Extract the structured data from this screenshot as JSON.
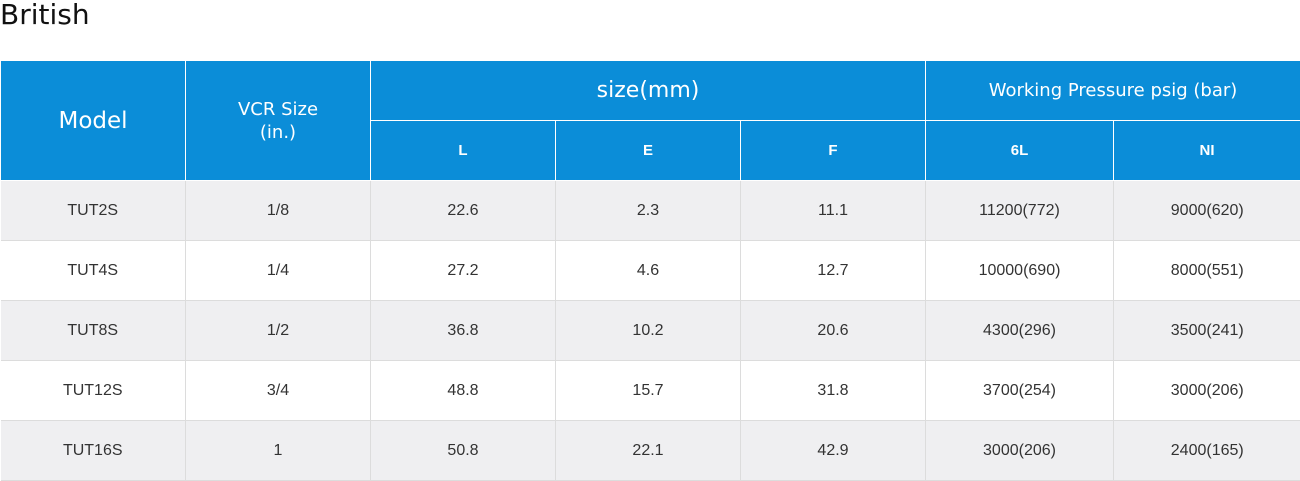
{
  "section_title": "British",
  "table": {
    "headers": {
      "model": "Model",
      "vcr_size_line1": "VCR Size",
      "vcr_size_line2": "(in.)",
      "size_group": "size(mm)",
      "working_pressure_group": "Working Pressure psig (bar)",
      "sub": [
        "L",
        "E",
        "F",
        "6L",
        "NI"
      ]
    },
    "rows": [
      [
        "TUT2S",
        "1/8",
        "22.6",
        "2.3",
        "11.1",
        "11200(772)",
        "9000(620)"
      ],
      [
        "TUT4S",
        "1/4",
        "27.2",
        "4.6",
        "12.7",
        "10000(690)",
        "8000(551)"
      ],
      [
        "TUT8S",
        "1/2",
        "36.8",
        "10.2",
        "20.6",
        "4300(296)",
        "3500(241)"
      ],
      [
        "TUT12S",
        "3/4",
        "48.8",
        "15.7",
        "31.8",
        "3700(254)",
        "3000(206)"
      ],
      [
        "TUT16S",
        "1",
        "50.8",
        "22.1",
        "42.9",
        "3000(206)",
        "2400(165)"
      ]
    ]
  },
  "colors": {
    "header_bg": "#0b8dd8",
    "row_alt_bg": "#efeff1"
  }
}
